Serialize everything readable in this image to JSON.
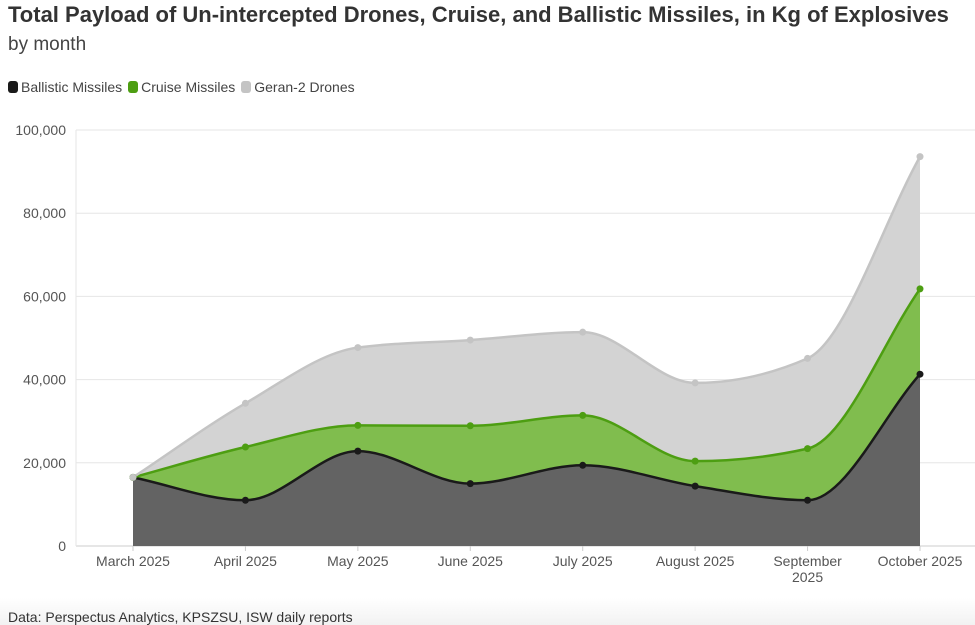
{
  "header": {
    "title": "Total Payload of Un-intercepted Drones, Cruise, and Ballistic Missiles, in Kg of Explosives",
    "subtitle": "by month"
  },
  "legend": [
    {
      "label": "Ballistic Missiles",
      "color": "#1a1a1a"
    },
    {
      "label": "Cruise Missiles",
      "color": "#4d9e12"
    },
    {
      "label": "Geran-2 Drones",
      "color": "#c4c4c4"
    }
  ],
  "footer": {
    "source": "Data: Perspectus Analytics, KPSZSU, ISW daily reports"
  },
  "chart_data": {
    "type": "area",
    "stacked": true,
    "categories": [
      "March 2025",
      "April 2025",
      "May 2025",
      "June 2025",
      "July 2025",
      "August 2025",
      "September 2025",
      "October 2025"
    ],
    "category_lines": [
      [
        "March 2025"
      ],
      [
        "April 2025"
      ],
      [
        "May 2025"
      ],
      [
        "June 2025"
      ],
      [
        "July 2025"
      ],
      [
        "August 2025"
      ],
      [
        "September",
        "2025"
      ],
      [
        "October 2025"
      ]
    ],
    "ylim": [
      0,
      100000
    ],
    "yticks": [
      0,
      20000,
      40000,
      60000,
      80000,
      100000
    ],
    "ytick_labels": [
      "0",
      "20,000",
      "40,000",
      "60,000",
      "80,000",
      "100,000"
    ],
    "grid": true,
    "legend_position": "top-left",
    "series": [
      {
        "name": "Ballistic Missiles",
        "color": "#1a1a1a",
        "fill": "#636363",
        "cumulative": [
          16500,
          11000,
          22800,
          15000,
          19400,
          14400,
          11000,
          41300
        ]
      },
      {
        "name": "Cruise Missiles",
        "color": "#4d9e12",
        "fill": "#80bd4e",
        "cumulative": [
          16500,
          23800,
          29000,
          28900,
          31400,
          20400,
          23400,
          61800
        ]
      },
      {
        "name": "Geran-2 Drones",
        "color": "#c4c4c4",
        "fill": "#d3d3d3",
        "cumulative": [
          16500,
          34300,
          47700,
          49500,
          51400,
          39200,
          45100,
          93600
        ]
      }
    ]
  }
}
